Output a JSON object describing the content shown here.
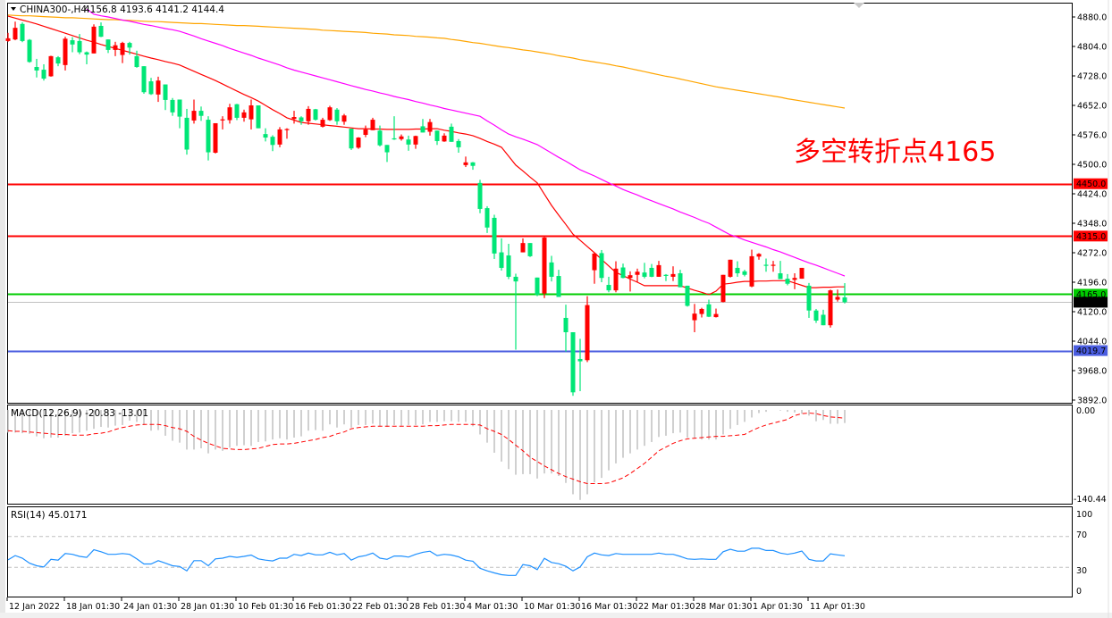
{
  "header": {
    "symbol": "CHINA300-,H4",
    "ohlc": "4156.8 4193.6 4141.2 4144.4"
  },
  "annotation": {
    "text": "多空转折点4165",
    "color": "#ff0000"
  },
  "colors": {
    "up": "#ff0000",
    "down": "#00e676",
    "ma_fast": "#ff0000",
    "ma_mid": "#ff00ff",
    "ma_slow": "#ffa500",
    "macd_hist": "#c0c0c0",
    "macd_signal": "#ff0000",
    "rsi": "#1e90ff"
  },
  "chart_data": {
    "type": "candlestick",
    "symbol": "CHINA300-",
    "timeframe": "H4",
    "ylim": [
      3892,
      4880
    ],
    "price_ticks": [
      "4880.0",
      "4804.0",
      "4728.0",
      "4652.0",
      "4576.0",
      "4500.0",
      "4424.0",
      "4348.0",
      "4272.0",
      "4196.0",
      "4120.0",
      "4044.0",
      "3968.0",
      "3892.0"
    ],
    "x_tick_labels": [
      "12 Jan 2022",
      "18 Jan 01:30",
      "24 Jan 01:30",
      "28 Jan 01:30",
      "10 Feb 01:30",
      "16 Feb 01:30",
      "22 Feb 01:30",
      "28 Feb 01:30",
      "4 Mar 01:30",
      "10 Mar 01:30",
      "16 Mar 01:30",
      "22 Mar 01:30",
      "28 Mar 01:30",
      "1 Apr 01:30",
      "11 Apr 01:30"
    ],
    "levels": [
      {
        "value": 4450.0,
        "label": "4450.0",
        "color": "#ff0000"
      },
      {
        "value": 4315.0,
        "label": "4315.0",
        "color": "#ff0000"
      },
      {
        "value": 4165.0,
        "label": "4165.0",
        "color": "#00cc00"
      },
      {
        "value": 4144.4,
        "label": "4144.4",
        "color": "#000000",
        "line": "#c0c0c0"
      },
      {
        "value": 4019.7,
        "label": "4019.7",
        "color": "#4a5de0"
      }
    ],
    "candles": [
      [
        4818,
        4839,
        4816,
        4825
      ],
      [
        4822,
        4868,
        4820,
        4852
      ],
      [
        4862,
        4866,
        4815,
        4818
      ],
      [
        4821,
        4823,
        4762,
        4764
      ],
      [
        4751,
        4772,
        4724,
        4742
      ],
      [
        4744,
        4758,
        4716,
        4721
      ],
      [
        4727,
        4780,
        4726,
        4779
      ],
      [
        4776,
        4779,
        4753,
        4760
      ],
      [
        4756,
        4829,
        4742,
        4824
      ],
      [
        4820,
        4828,
        4789,
        4809
      ],
      [
        4818,
        4836,
        4784,
        4789
      ],
      [
        4789,
        4791,
        4758,
        4783
      ],
      [
        4786,
        4861,
        4786,
        4855
      ],
      [
        4857,
        4866,
        4828,
        4829
      ],
      [
        4822,
        4822,
        4787,
        4795
      ],
      [
        4795,
        4816,
        4779,
        4807
      ],
      [
        4782,
        4816,
        4761,
        4813
      ],
      [
        4813,
        4816,
        4783,
        4801
      ],
      [
        4779,
        4793,
        4749,
        4751
      ],
      [
        4753,
        4753,
        4682,
        4686
      ],
      [
        4714,
        4723,
        4679,
        4681
      ],
      [
        4680,
        4726,
        4661,
        4716
      ],
      [
        4706,
        4706,
        4640,
        4666
      ],
      [
        4666,
        4671,
        4625,
        4634
      ],
      [
        4667,
        4667,
        4593,
        4623
      ],
      [
        4620,
        4643,
        4525,
        4538
      ],
      [
        4613,
        4667,
        4605,
        4638
      ],
      [
        4638,
        4649,
        4612,
        4625
      ],
      [
        4615,
        4624,
        4510,
        4531
      ],
      [
        4530,
        4606,
        4528,
        4606
      ],
      [
        4614,
        4624,
        4590,
        4616
      ],
      [
        4614,
        4656,
        4605,
        4647
      ],
      [
        4655,
        4656,
        4614,
        4620
      ],
      [
        4620,
        4641,
        4610,
        4634
      ],
      [
        4616,
        4667,
        4590,
        4652
      ],
      [
        4652,
        4652,
        4593,
        4593
      ],
      [
        4578,
        4593,
        4559,
        4569
      ],
      [
        4571,
        4575,
        4534,
        4550
      ],
      [
        4551,
        4596,
        4544,
        4590
      ],
      [
        4589,
        4593,
        4566,
        4591
      ],
      [
        4617,
        4638,
        4605,
        4622
      ],
      [
        4621,
        4624,
        4602,
        4611
      ],
      [
        4611,
        4650,
        4602,
        4643
      ],
      [
        4642,
        4643,
        4613,
        4615
      ],
      [
        4597,
        4620,
        4595,
        4615
      ],
      [
        4614,
        4651,
        4612,
        4647
      ],
      [
        4641,
        4645,
        4602,
        4611
      ],
      [
        4610,
        4630,
        4602,
        4626
      ],
      [
        4592,
        4592,
        4537,
        4541
      ],
      [
        4543,
        4570,
        4540,
        4569
      ],
      [
        4576,
        4600,
        4570,
        4590
      ],
      [
        4588,
        4620,
        4588,
        4615
      ],
      [
        4587,
        4600,
        4546,
        4549
      ],
      [
        4550,
        4550,
        4506,
        4531
      ],
      [
        4567,
        4624,
        4563,
        4566
      ],
      [
        4565,
        4577,
        4561,
        4572
      ],
      [
        4564,
        4574,
        4535,
        4551
      ],
      [
        4551,
        4574,
        4540,
        4573
      ],
      [
        4598,
        4617,
        4582,
        4582
      ],
      [
        4584,
        4617,
        4574,
        4609
      ],
      [
        4587,
        4587,
        4550,
        4560
      ],
      [
        4559,
        4580,
        4558,
        4574
      ],
      [
        4597,
        4605,
        4558,
        4558
      ],
      [
        4560,
        4565,
        4530,
        4544
      ],
      [
        4498,
        4520,
        4493,
        4505
      ],
      [
        4505,
        4506,
        4486,
        4496
      ],
      [
        4452,
        4460,
        4374,
        4385
      ],
      [
        4387,
        4392,
        4323,
        4337
      ],
      [
        4362,
        4370,
        4256,
        4270
      ],
      [
        4273,
        4309,
        4226,
        4233
      ],
      [
        4265,
        4295,
        4204,
        4210
      ],
      [
        4210,
        4218,
        4022,
        4198
      ],
      [
        4273,
        4309,
        4273,
        4297
      ],
      [
        4297,
        4297,
        4261,
        4263
      ],
      [
        4208,
        4208,
        4160,
        4164
      ],
      [
        4167,
        4313,
        4155,
        4311
      ],
      [
        4247,
        4264,
        4198,
        4210
      ],
      [
        4212,
        4228,
        4158,
        4158
      ],
      [
        4104,
        4138,
        4017,
        4067
      ],
      [
        4067,
        4067,
        3903,
        3912
      ],
      [
        3998,
        4050,
        3915,
        3992
      ],
      [
        3995,
        4160,
        3990,
        4137
      ],
      [
        4227,
        4271,
        4192,
        4270
      ],
      [
        4271,
        4279,
        4196,
        4207
      ],
      [
        4189,
        4210,
        4170,
        4175
      ],
      [
        4175,
        4250,
        4170,
        4231
      ],
      [
        4234,
        4244,
        4206,
        4207
      ],
      [
        4207,
        4224,
        4172,
        4214
      ],
      [
        4215,
        4231,
        4196,
        4223
      ],
      [
        4221,
        4246,
        4206,
        4210
      ],
      [
        4233,
        4243,
        4209,
        4210
      ],
      [
        4210,
        4251,
        4210,
        4240
      ],
      [
        4215,
        4217,
        4199,
        4214
      ],
      [
        4210,
        4237,
        4199,
        4217
      ],
      [
        4219,
        4228,
        4183,
        4183
      ],
      [
        4187,
        4187,
        4133,
        4135
      ],
      [
        4098,
        4140,
        4067,
        4115
      ],
      [
        4114,
        4130,
        4105,
        4127
      ],
      [
        4139,
        4151,
        4106,
        4107
      ],
      [
        4106,
        4128,
        4105,
        4114
      ],
      [
        4145,
        4215,
        4144,
        4215
      ],
      [
        4210,
        4254,
        4208,
        4254
      ],
      [
        4233,
        4250,
        4210,
        4219
      ],
      [
        4224,
        4228,
        4211,
        4215
      ],
      [
        4185,
        4280,
        4183,
        4263
      ],
      [
        4262,
        4271,
        4254,
        4269
      ],
      [
        4241,
        4257,
        4223,
        4240
      ],
      [
        4240,
        4251,
        4223,
        4241
      ],
      [
        4219,
        4251,
        4204,
        4204
      ],
      [
        4205,
        4217,
        4188,
        4192
      ],
      [
        4202,
        4219,
        4178,
        4207
      ],
      [
        4205,
        4233,
        4205,
        4233
      ],
      [
        4187,
        4194,
        4104,
        4123
      ],
      [
        4123,
        4127,
        4091,
        4097
      ],
      [
        4112,
        4125,
        4085,
        4085
      ],
      [
        4085,
        4177,
        4079,
        4175
      ],
      [
        4151,
        4177,
        4146,
        4158
      ],
      [
        4156.8,
        4193.6,
        4141.2,
        4144.4
      ]
    ],
    "ma_fast": [
      4882,
      4877,
      4872,
      4867,
      4862,
      4856,
      4850,
      4844,
      4838,
      4832,
      4826,
      4820,
      4815,
      4809,
      4804,
      4799,
      4794,
      4789,
      4784,
      4779,
      4774,
      4770,
      4765,
      4761,
      4756,
      4748,
      4740,
      4732,
      4724,
      4716,
      4707,
      4698,
      4689,
      4680,
      4672,
      4663,
      4652,
      4641,
      4631,
      4620,
      4614,
      4608,
      4606,
      4604,
      4602,
      4600,
      4598,
      4596,
      4594,
      4592,
      4592,
      4591,
      4591,
      4590,
      4590,
      4590,
      4590,
      4591,
      4591,
      4592,
      4592,
      4588,
      4585,
      4581,
      4578,
      4574,
      4567,
      4559,
      4552,
      4544,
      4521,
      4498,
      4483,
      4467,
      4452,
      4423,
      4394,
      4369,
      4345,
      4320,
      4304,
      4288,
      4272,
      4255,
      4238,
      4221,
      4213,
      4204,
      4196,
      4187,
      4187,
      4187,
      4187,
      4187,
      4187,
      4181,
      4175,
      4170,
      4164,
      4173,
      4191,
      4193,
      4196,
      4198,
      4198,
      4199,
      4199,
      4200,
      4200,
      4200,
      4194,
      4188,
      4182,
      4182,
      4183,
      4183,
      4184,
      4184
    ],
    "ma_mid": [
      null,
      null,
      null,
      null,
      null,
      null,
      null,
      null,
      null,
      null,
      null,
      4900,
      4887,
      4883,
      4880,
      4876,
      4872,
      4869,
      4865,
      4861,
      4858,
      4854,
      4850,
      4847,
      4843,
      4837,
      4831,
      4824,
      4818,
      4812,
      4806,
      4799,
      4793,
      4787,
      4781,
      4774,
      4768,
      4762,
      4756,
      4749,
      4743,
      4738,
      4733,
      4728,
      4723,
      4718,
      4713,
      4708,
      4703,
      4698,
      4693,
      4689,
      4684,
      4680,
      4675,
      4671,
      4667,
      4662,
      4658,
      4653,
      4649,
      4644,
      4640,
      4636,
      4632,
      4628,
      4624,
      4612,
      4601,
      4589,
      4578,
      4571,
      4565,
      4558,
      4551,
      4540,
      4529,
      4518,
      4508,
      4497,
      4486,
      4478,
      4470,
      4461,
      4452,
      4444,
      4435,
      4428,
      4421,
      4413,
      4406,
      4399,
      4392,
      4385,
      4377,
      4370,
      4363,
      4355,
      4348,
      4338,
      4328,
      4318,
      4312,
      4305,
      4299,
      4293,
      4287,
      4280,
      4274,
      4267,
      4260,
      4253,
      4246,
      4240,
      4233,
      4226,
      4219,
      4212
    ],
    "ma_slow": [
      4885,
      4884,
      4883,
      4883,
      4882,
      4881,
      4880,
      4879,
      4878,
      4878,
      4877,
      4876,
      4875,
      4874,
      4873,
      4873,
      4872,
      4871,
      4870,
      4869,
      4868,
      4868,
      4867,
      4866,
      4865,
      4864,
      4863,
      4863,
      4862,
      4861,
      4860,
      4859,
      4858,
      4858,
      4857,
      4856,
      4855,
      4854,
      4853,
      4852,
      4851,
      4850,
      4849,
      4848,
      4846,
      4845,
      4844,
      4843,
      4842,
      4841,
      4840,
      4838,
      4837,
      4836,
      4834,
      4833,
      4832,
      4830,
      4829,
      4828,
      4826,
      4825,
      4822,
      4820,
      4817,
      4814,
      4812,
      4809,
      4806,
      4803,
      4801,
      4798,
      4795,
      4793,
      4790,
      4787,
      4784,
      4780,
      4777,
      4774,
      4770,
      4767,
      4764,
      4761,
      4758,
      4754,
      4751,
      4747,
      4743,
      4739,
      4735,
      4731,
      4727,
      4724,
      4720,
      4716,
      4712,
      4708,
      4704,
      4700,
      4697,
      4694,
      4691,
      4688,
      4685,
      4682,
      4679,
      4676,
      4673,
      4669,
      4666,
      4663,
      4660,
      4657,
      4654,
      4651,
      4648,
      4645
    ],
    "macd": {
      "label": "MACD(12,26,9) -20.83 -13.01",
      "ylim": [
        -140.44,
        0.0
      ],
      "axis_labels": [
        "0.00",
        "-140.44"
      ],
      "histogram": [
        -36,
        -36,
        -37,
        -38,
        -42,
        -45,
        -44,
        -44,
        -41,
        -37,
        -36,
        -33,
        -30,
        -27,
        -28,
        -25,
        -24,
        -17,
        -19,
        -24,
        -33,
        -32,
        -41,
        -49,
        -52,
        -63,
        -63,
        -61,
        -69,
        -63,
        -65,
        -60,
        -57,
        -56,
        -57,
        -51,
        -50,
        -47,
        -45,
        -47,
        -44,
        -42,
        -33,
        -32,
        -33,
        -23,
        -28,
        -23,
        -28,
        -24,
        -24,
        -22,
        -26,
        -27,
        -24,
        -25,
        -24,
        -24,
        -23,
        -19,
        -19,
        -18,
        -18,
        -19,
        -19,
        -26,
        -39,
        -52,
        -68,
        -82,
        -94,
        -103,
        -102,
        -102,
        -109,
        -101,
        -101,
        -105,
        -116,
        -134,
        -143,
        -134,
        -115,
        -108,
        -96,
        -85,
        -76,
        -69,
        -63,
        -57,
        -51,
        -43,
        -41,
        -37,
        -36,
        -44,
        -45,
        -47,
        -47,
        -47,
        -39,
        -30,
        -24,
        -19,
        -12,
        -5,
        -3,
        0,
        -1,
        -3,
        -4,
        -6,
        -9,
        -18,
        -16,
        -22,
        -22,
        -20.83
      ],
      "signal": [
        -33,
        -34,
        -34,
        -35,
        -36,
        -37,
        -38,
        -39,
        -39,
        -40,
        -40,
        -40,
        -38,
        -37,
        -35,
        -31,
        -28,
        -26,
        -24,
        -23,
        -23,
        -23,
        -25,
        -28,
        -30,
        -34,
        -42,
        -48,
        -53,
        -57,
        -61,
        -62,
        -63,
        -63,
        -62,
        -61,
        -58,
        -55,
        -54,
        -54,
        -53,
        -51,
        -49,
        -47,
        -44,
        -42,
        -38,
        -35,
        -30,
        -28,
        -27,
        -26,
        -26,
        -26,
        -26,
        -26,
        -26,
        -26,
        -26,
        -25,
        -25,
        -24,
        -23,
        -23,
        -23,
        -23,
        -24,
        -30,
        -34,
        -39,
        -47,
        -56,
        -65,
        -75,
        -82,
        -89,
        -95,
        -101,
        -106,
        -110,
        -114,
        -117,
        -117,
        -117,
        -116,
        -112,
        -108,
        -101,
        -93,
        -85,
        -75,
        -65,
        -59,
        -53,
        -49,
        -46,
        -45,
        -44,
        -43,
        -42,
        -42,
        -41,
        -40,
        -39,
        -33,
        -28,
        -24,
        -21,
        -18,
        -15,
        -9,
        -6,
        -5,
        -6,
        -9,
        -11,
        -12,
        -13.01
      ]
    },
    "rsi": {
      "label": "RSI(14) 45.0171",
      "ylim": [
        0,
        100
      ],
      "axis_labels": [
        "100",
        "70",
        "30",
        "0"
      ],
      "levels": [
        70,
        30
      ],
      "values": [
        39.6,
        45.2,
        41.9,
        35.3,
        32.0,
        30.3,
        40.3,
        39.3,
        47.9,
        46.9,
        44.2,
        42.9,
        52.8,
        50.2,
        46.9,
        46.9,
        47.9,
        46.9,
        40.9,
        34.3,
        34.3,
        38.6,
        35.3,
        32.0,
        31.0,
        25.4,
        38.6,
        38.6,
        32.0,
        40.9,
        41.9,
        44.2,
        42.9,
        44.2,
        45.9,
        40.9,
        39.3,
        38.3,
        41.9,
        41.9,
        46.9,
        45.2,
        48.5,
        46.2,
        46.2,
        49.5,
        46.2,
        47.9,
        39.3,
        43.6,
        45.2,
        48.5,
        41.9,
        40.3,
        44.6,
        44.6,
        43.3,
        46.9,
        49.5,
        50.9,
        45.2,
        46.9,
        45.9,
        43.6,
        39.3,
        37.9,
        28.7,
        25.4,
        22.7,
        20.4,
        19.4,
        19.4,
        33.6,
        32.0,
        27.0,
        41.6,
        36.3,
        34.6,
        31.3,
        25.4,
        30.3,
        43.6,
        48.5,
        46.2,
        45.2,
        47.9,
        46.9,
        46.9,
        46.9,
        46.9,
        46.9,
        48.5,
        46.9,
        46.9,
        44.2,
        40.9,
        40.3,
        40.9,
        40.3,
        40.3,
        50.2,
        53.5,
        50.9,
        50.9,
        54.8,
        54.8,
        51.9,
        51.9,
        48.5,
        46.9,
        48.5,
        51.2,
        40.3,
        38.3,
        38.3,
        47.5,
        46.2,
        45.0171
      ]
    }
  }
}
